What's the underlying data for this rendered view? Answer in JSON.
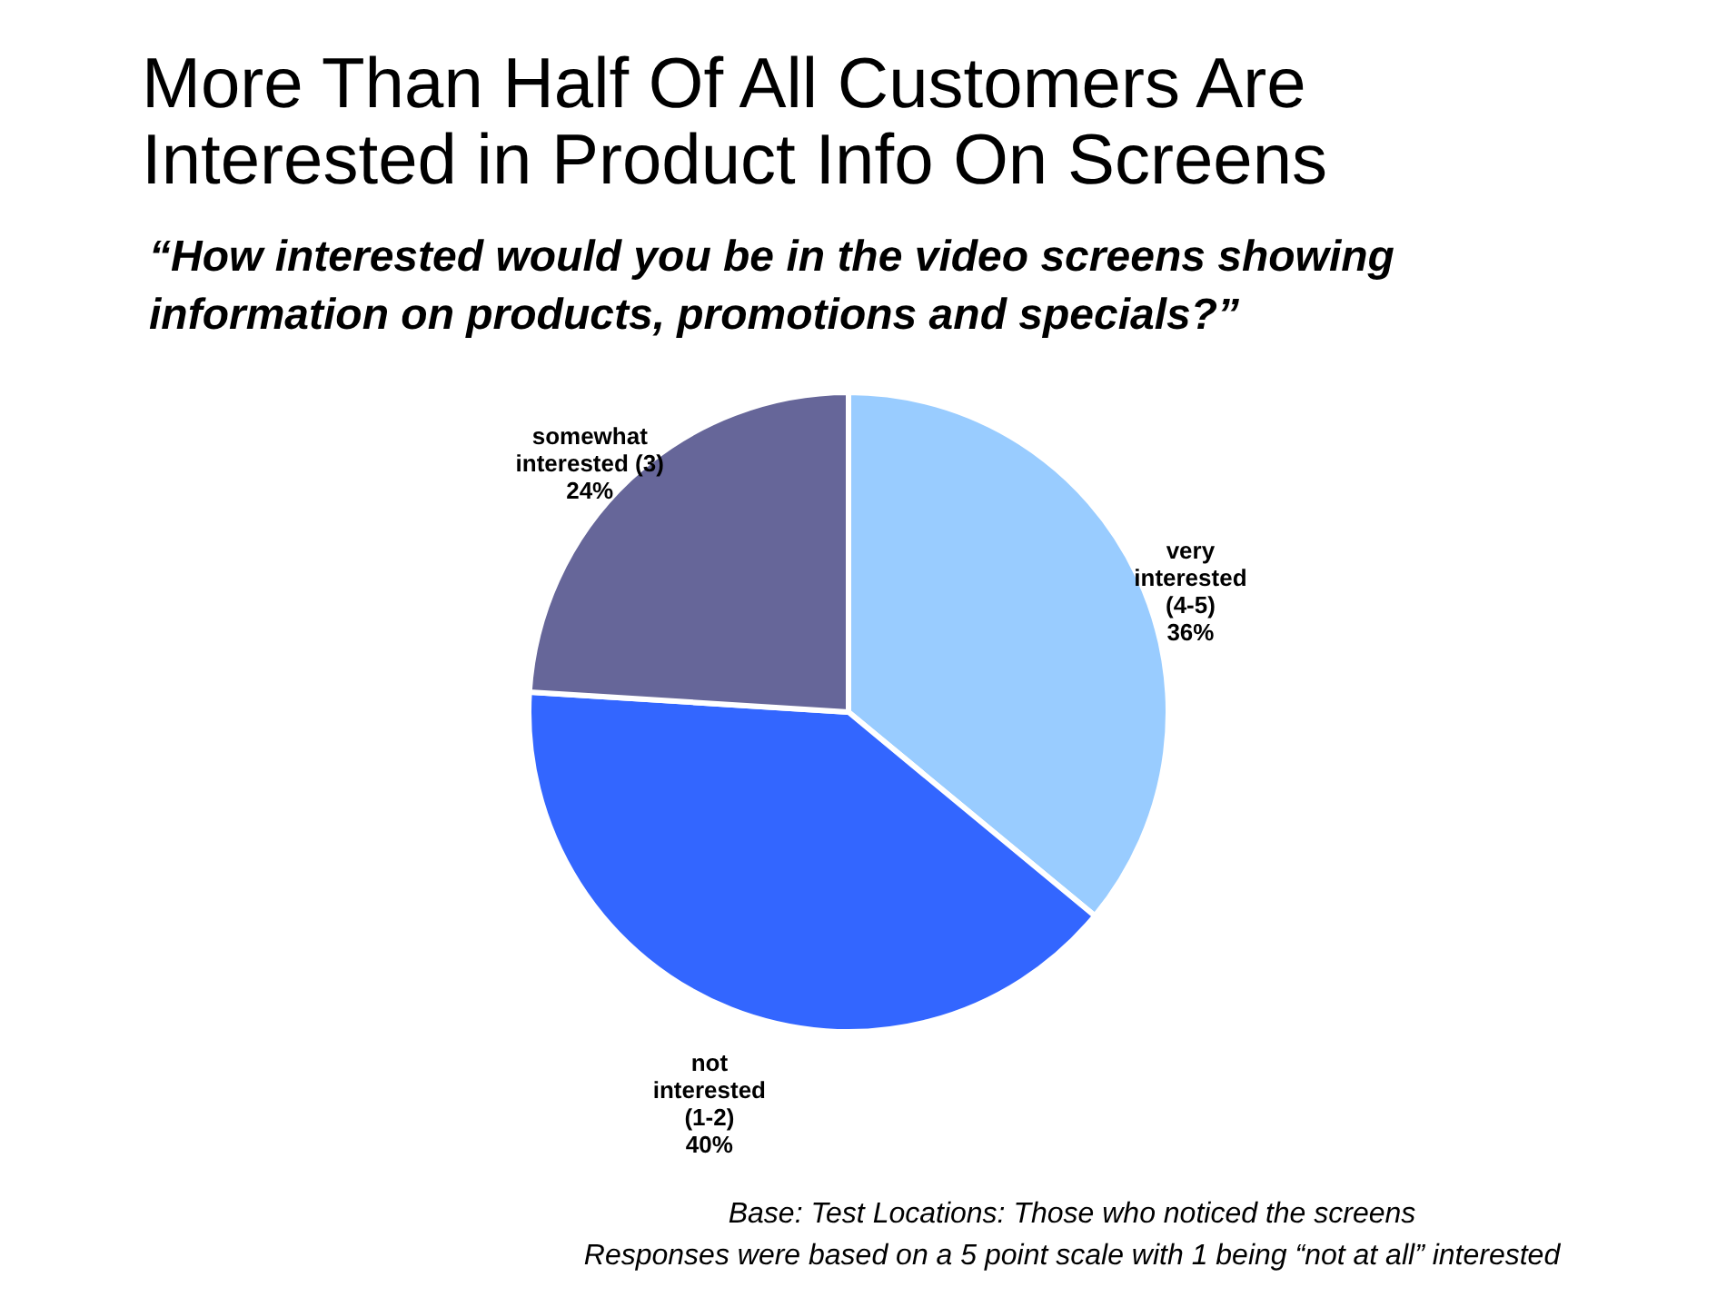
{
  "chart_data": {
    "type": "pie",
    "title": "More Than Half Of All Customers Are\nInterested in Product Info On Screens",
    "subtitle": "“How interested would you be in the video screens showing\ninformation on products, promotions and specials?”",
    "categories": [
      "very\ninterested\n(4-5)",
      "not\ninterested\n(1-2)",
      "somewhat\ninterested (3)"
    ],
    "values": [
      36,
      40,
      24
    ],
    "value_labels": [
      "36%",
      "40%",
      "24%"
    ],
    "colors": [
      "#99ccff",
      "#3366ff",
      "#666699"
    ],
    "annotations": [
      "Base: Test Locations: Those who noticed the screens",
      "Responses were based on a 5 point scale with 1 being “not at all” interested"
    ]
  }
}
